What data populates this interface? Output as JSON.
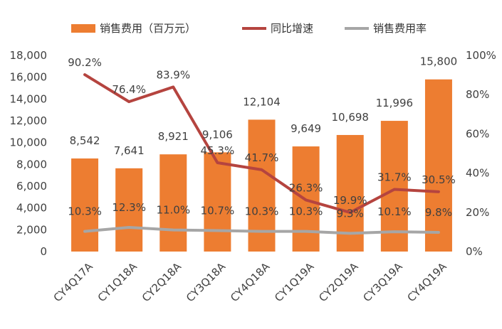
{
  "chart_data": {
    "type": "bar",
    "categories": [
      "CY4Q17A",
      "CY1Q18A",
      "CY2Q18A",
      "CY3Q18A",
      "CY4Q18A",
      "CY1Q19A",
      "CY2Q19A",
      "CY3Q19A",
      "CY4Q19A"
    ],
    "series": [
      {
        "name": "销售费用（百万元）",
        "type": "bar",
        "axis": "left",
        "values": [
          8542,
          7641,
          8921,
          9106,
          12104,
          9649,
          10698,
          11996,
          15800
        ],
        "labels": [
          "8,542",
          "7,641",
          "8,921",
          "9,106",
          "12,104",
          "9,649",
          "10,698",
          "11,996",
          "15,800"
        ]
      },
      {
        "name": "同比增速",
        "type": "line",
        "axis": "right",
        "values": [
          90.2,
          76.4,
          83.9,
          45.3,
          41.7,
          26.3,
          19.9,
          31.7,
          30.5
        ],
        "labels": [
          "90.2%",
          "76.4%",
          "83.9%",
          "45.3%",
          "41.7%",
          "26.3%",
          "19.9%",
          "31.7%",
          "30.5%"
        ]
      },
      {
        "name": "销售费用率",
        "type": "line",
        "axis": "right",
        "values": [
          10.3,
          12.3,
          11.0,
          10.7,
          10.3,
          10.3,
          9.3,
          10.1,
          9.8
        ],
        "labels": [
          "10.3%",
          "12.3%",
          "11.0%",
          "10.7%",
          "10.3%",
          "10.3%",
          "9.3%",
          "10.1%",
          "9.8%"
        ]
      }
    ],
    "left_axis": {
      "ylim": [
        0,
        18000
      ],
      "ticks": [
        "0",
        "2,000",
        "4,000",
        "6,000",
        "8,000",
        "10,000",
        "12,000",
        "14,000",
        "16,000",
        "18,000"
      ]
    },
    "right_axis": {
      "ylim": [
        0,
        100
      ],
      "ticks": [
        "0%",
        "20%",
        "40%",
        "60%",
        "80%",
        "100%"
      ]
    },
    "title": "",
    "xlabel": "",
    "ylabel": "",
    "grid": false,
    "legend_position": "top",
    "colors": {
      "bar": "#ED7D31",
      "growth_line": "#B5443F",
      "ratio_line": "#A6A6A6",
      "text": "#404040"
    }
  }
}
